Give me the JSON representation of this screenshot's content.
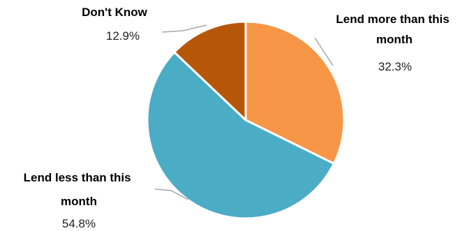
{
  "chart_data": {
    "type": "pie",
    "title": "",
    "slices": [
      {
        "label_lines": [
          "Lend more than this",
          "month"
        ],
        "label": "Lend more than this month",
        "value": 32.3,
        "value_text": "32.3%",
        "color": "#F79646"
      },
      {
        "label_lines": [
          "Lend less than this",
          "month"
        ],
        "label": "Lend less than this month",
        "value": 54.8,
        "value_text": "54.8%",
        "color": "#4BACC6"
      },
      {
        "label_lines": [
          "Don't Know"
        ],
        "label": "Don't Know",
        "value": 12.9,
        "value_text": "12.9%",
        "color": "#B65708"
      }
    ],
    "start_angle_deg": 0,
    "direction": "clockwise",
    "legend": "none",
    "leader_line_color": "#A6A6A6",
    "slice_border_color": "#FFFFFF"
  }
}
